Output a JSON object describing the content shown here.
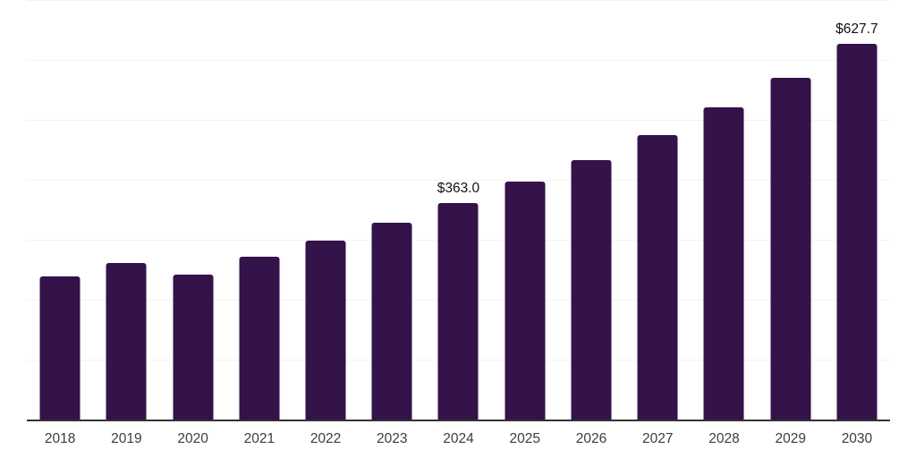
{
  "chart_data": {
    "type": "bar",
    "title": "",
    "xlabel": "",
    "ylabel": "",
    "categories": [
      "2018",
      "2019",
      "2020",
      "2021",
      "2022",
      "2023",
      "2024",
      "2025",
      "2026",
      "2027",
      "2028",
      "2029",
      "2030"
    ],
    "values": [
      240,
      263,
      243,
      273,
      300,
      330,
      363.0,
      398,
      435,
      476,
      522,
      572,
      627.7
    ],
    "data_labels": {
      "2024": "$363.0",
      "2030": "$627.7"
    },
    "value_prefix": "$",
    "ylim": [
      0,
      700
    ],
    "gridline_step": 100,
    "grid": true,
    "legend": false,
    "colors": {
      "bar": "#34124a",
      "background": "#ffffff",
      "gridline": "#f3f3f3",
      "axis_line": "#333333",
      "tick_label": "#3d3d3d",
      "data_label": "#111111"
    }
  }
}
